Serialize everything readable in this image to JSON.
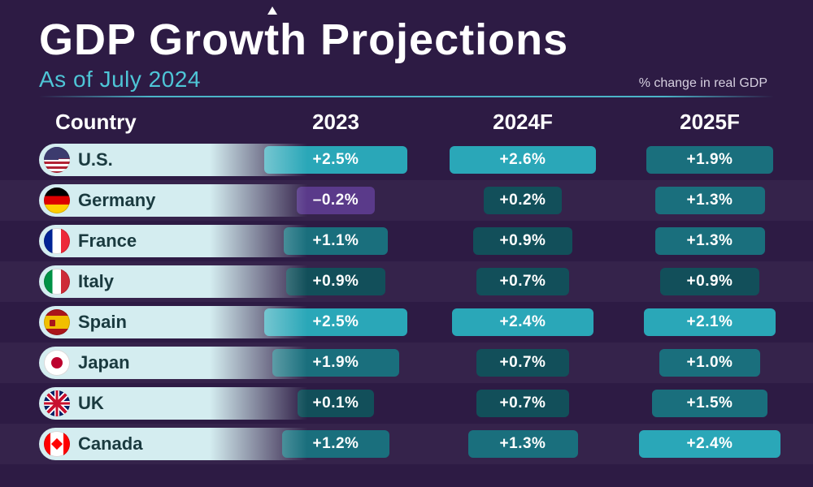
{
  "title_pre": "GDP Grow",
  "title_t": "t",
  "title_post": "h Projections",
  "subtitle": "As of July 2024",
  "note": "% change in real GDP",
  "background_color": "#2d1b44",
  "accent_color": "#4ec5d6",
  "columns": [
    "Country",
    "2023",
    "2024F",
    "2025F"
  ],
  "pill_max_width": 180,
  "pill_min_width": 90,
  "value_range_for_width": [
    0,
    2.6
  ],
  "colors": {
    "high": "#2aa7b8",
    "mid": "#1a6f7d",
    "low": "#124f5a",
    "neg": "#5a3a8a",
    "country_pill": "#d4edf0",
    "country_text": "#1a3a3f"
  },
  "color_thresholds": {
    "neg_below": 0,
    "low_below": 1.0,
    "mid_below": 2.0
  },
  "rows": [
    {
      "flag": "us",
      "name": "U.S.",
      "vals": [
        2.5,
        2.6,
        1.9
      ]
    },
    {
      "flag": "de",
      "name": "Germany",
      "vals": [
        -0.2,
        0.2,
        1.3
      ]
    },
    {
      "flag": "fr",
      "name": "France",
      "vals": [
        1.1,
        0.9,
        1.3
      ]
    },
    {
      "flag": "it",
      "name": "Italy",
      "vals": [
        0.9,
        0.7,
        0.9
      ]
    },
    {
      "flag": "es",
      "name": "Spain",
      "vals": [
        2.5,
        2.4,
        2.1
      ]
    },
    {
      "flag": "jp",
      "name": "Japan",
      "vals": [
        1.9,
        0.7,
        1.0
      ]
    },
    {
      "flag": "uk",
      "name": "UK",
      "vals": [
        0.1,
        0.7,
        1.5
      ]
    },
    {
      "flag": "ca",
      "name": "Canada",
      "vals": [
        1.2,
        1.3,
        2.4
      ]
    }
  ]
}
